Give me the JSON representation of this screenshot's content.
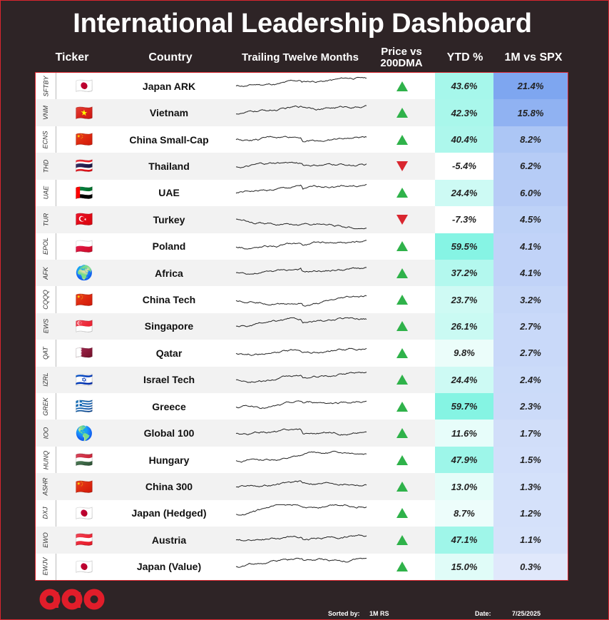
{
  "header": {
    "title": "International Leadership Dashboard",
    "col_ticker": "Ticker",
    "col_country": "Country",
    "col_ttm": "Trailing Twelve Months",
    "col_dma_line1": "Price vs",
    "col_dma_line2": "200DMA",
    "col_ytd": "YTD %",
    "col_rs": "1M vs SPX"
  },
  "footer": {
    "sorted_label": "Sorted by:",
    "sorted_value": "1M RS",
    "date_label": "Date:",
    "date_value": "7/25/2025"
  },
  "colors": {
    "background": "#2e2426",
    "accent_red": "#d9262f",
    "up_green": "#2fb24a",
    "down_red": "#d9262f",
    "ytd_high": "#7ff3e2",
    "rs_high": "#7ea6f0"
  },
  "chart_data": {
    "type": "table",
    "columns": [
      "Ticker",
      "Country",
      "Trailing Twelve Months",
      "Price vs 200DMA",
      "YTD %",
      "1M vs SPX"
    ],
    "rows": [
      {
        "ticker": "SFTBY",
        "flag": "🇯🇵",
        "country": "Japan ARK",
        "dma": "up",
        "ytd": "43.6%",
        "ytd_val": 43.6,
        "rs": "21.4%",
        "rs_val": 21.4
      },
      {
        "ticker": "VNM",
        "flag": "🇻🇳",
        "country": "Vietnam",
        "dma": "up",
        "ytd": "42.3%",
        "ytd_val": 42.3,
        "rs": "15.8%",
        "rs_val": 15.8
      },
      {
        "ticker": "ECNS",
        "flag": "🇨🇳",
        "country": "China Small-Cap",
        "dma": "up",
        "ytd": "40.4%",
        "ytd_val": 40.4,
        "rs": "8.2%",
        "rs_val": 8.2
      },
      {
        "ticker": "THD",
        "flag": "🇹🇭",
        "country": "Thailand",
        "dma": "down",
        "ytd": "-5.4%",
        "ytd_val": -5.4,
        "rs": "6.2%",
        "rs_val": 6.2
      },
      {
        "ticker": "UAE",
        "flag": "🇦🇪",
        "country": "UAE",
        "dma": "up",
        "ytd": "24.4%",
        "ytd_val": 24.4,
        "rs": "6.0%",
        "rs_val": 6.0
      },
      {
        "ticker": "TUR",
        "flag": "🇹🇷",
        "country": "Turkey",
        "dma": "down",
        "ytd": "-7.3%",
        "ytd_val": -7.3,
        "rs": "4.5%",
        "rs_val": 4.5
      },
      {
        "ticker": "EPOL",
        "flag": "🇵🇱",
        "country": "Poland",
        "dma": "up",
        "ytd": "59.5%",
        "ytd_val": 59.5,
        "rs": "4.1%",
        "rs_val": 4.1
      },
      {
        "ticker": "AFK",
        "flag": "🌍",
        "country": "Africa",
        "dma": "up",
        "ytd": "37.2%",
        "ytd_val": 37.2,
        "rs": "4.1%",
        "rs_val": 4.1
      },
      {
        "ticker": "CQQQ",
        "flag": "🇨🇳",
        "country": "China Tech",
        "dma": "up",
        "ytd": "23.7%",
        "ytd_val": 23.7,
        "rs": "3.2%",
        "rs_val": 3.2
      },
      {
        "ticker": "EWS",
        "flag": "🇸🇬",
        "country": "Singapore",
        "dma": "up",
        "ytd": "26.1%",
        "ytd_val": 26.1,
        "rs": "2.7%",
        "rs_val": 2.7
      },
      {
        "ticker": "QAT",
        "flag": "🇶🇦",
        "country": "Qatar",
        "dma": "up",
        "ytd": "9.8%",
        "ytd_val": 9.8,
        "rs": "2.7%",
        "rs_val": 2.7
      },
      {
        "ticker": "IZRL",
        "flag": "🇮🇱",
        "country": "Israel Tech",
        "dma": "up",
        "ytd": "24.4%",
        "ytd_val": 24.4,
        "rs": "2.4%",
        "rs_val": 2.4
      },
      {
        "ticker": "GREK",
        "flag": "🇬🇷",
        "country": "Greece",
        "dma": "up",
        "ytd": "59.7%",
        "ytd_val": 59.7,
        "rs": "2.3%",
        "rs_val": 2.3
      },
      {
        "ticker": "IOO",
        "flag": "🌎",
        "country": "Global 100",
        "dma": "up",
        "ytd": "11.6%",
        "ytd_val": 11.6,
        "rs": "1.7%",
        "rs_val": 1.7
      },
      {
        "ticker": "HUNQ",
        "flag": "🇭🇺",
        "country": "Hungary",
        "dma": "up",
        "ytd": "47.9%",
        "ytd_val": 47.9,
        "rs": "1.5%",
        "rs_val": 1.5
      },
      {
        "ticker": "ASHR",
        "flag": "🇨🇳",
        "country": "China 300",
        "dma": "up",
        "ytd": "13.0%",
        "ytd_val": 13.0,
        "rs": "1.3%",
        "rs_val": 1.3
      },
      {
        "ticker": "DXJ",
        "flag": "🇯🇵",
        "country": "Japan (Hedged)",
        "dma": "up",
        "ytd": "8.7%",
        "ytd_val": 8.7,
        "rs": "1.2%",
        "rs_val": 1.2
      },
      {
        "ticker": "EWO",
        "flag": "🇦🇹",
        "country": "Austria",
        "dma": "up",
        "ytd": "47.1%",
        "ytd_val": 47.1,
        "rs": "1.1%",
        "rs_val": 1.1
      },
      {
        "ticker": "EWJV",
        "flag": "🇯🇵",
        "country": "Japan (Value)",
        "dma": "up",
        "ytd": "15.0%",
        "ytd_val": 15.0,
        "rs": "0.3%",
        "rs_val": 0.3
      }
    ]
  }
}
